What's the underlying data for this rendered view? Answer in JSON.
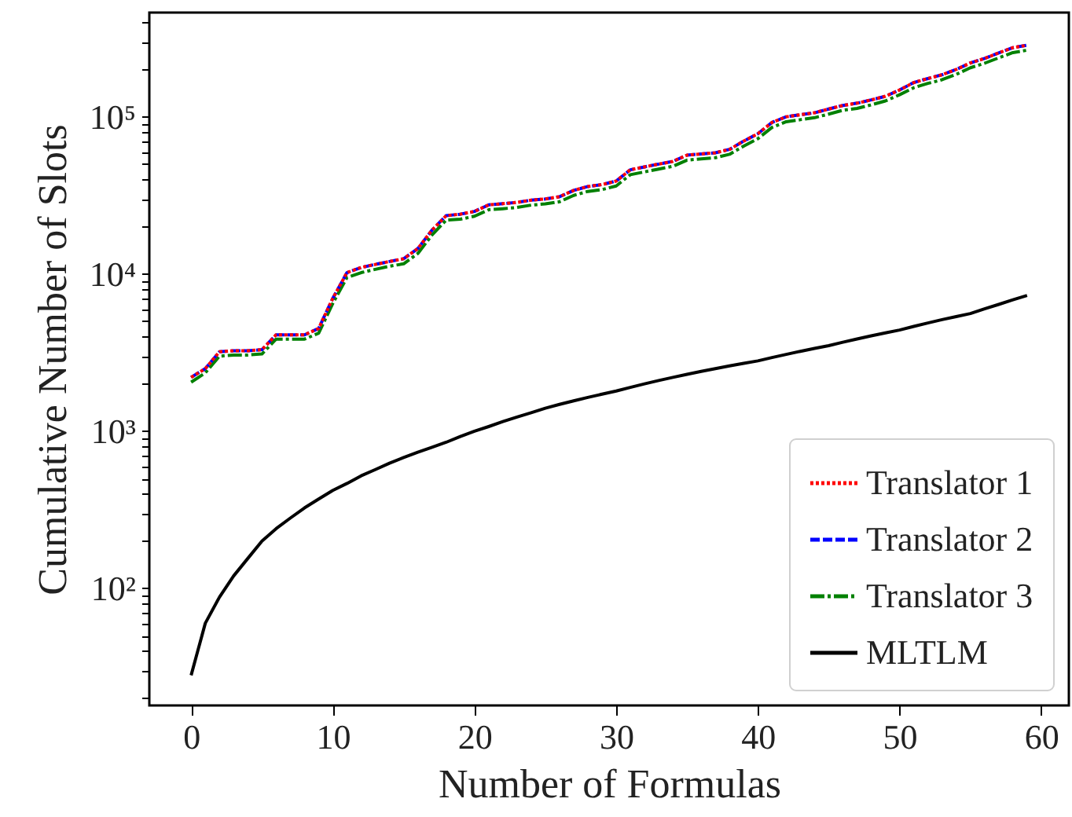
{
  "chart_data": {
    "type": "line",
    "xlabel": "Number of Formulas",
    "ylabel": "Cumulative Number of Slots",
    "log": "y",
    "grid": false,
    "legend": "bottom right",
    "x": [
      0,
      1,
      2,
      3,
      4,
      5,
      6,
      7,
      8,
      9,
      10,
      11,
      12,
      13,
      14,
      15,
      16,
      17,
      18,
      19,
      20,
      21,
      22,
      23,
      24,
      25,
      26,
      27,
      28,
      29,
      30,
      31,
      32,
      33,
      34,
      35,
      36,
      37,
      38,
      39,
      40,
      41,
      42,
      43,
      44,
      45,
      46,
      47,
      48,
      49,
      50,
      51,
      52,
      53,
      54,
      55,
      56,
      57,
      58,
      59
    ],
    "xlim": [
      -2.95,
      61.95
    ],
    "xticks": [
      0,
      10,
      20,
      30,
      40,
      50,
      60
    ],
    "ylim": [
      18,
      460000
    ],
    "yticks": [
      {
        "value": 20,
        "label": null
      },
      {
        "value": 30,
        "label": null
      },
      {
        "value": 40,
        "label": null
      },
      {
        "value": 50,
        "label": null
      },
      {
        "value": 60,
        "label": null
      },
      {
        "value": 70,
        "label": null
      },
      {
        "value": 80,
        "label": null
      },
      {
        "value": 90,
        "label": null
      },
      {
        "value": 100,
        "label": "10²"
      },
      {
        "value": 200,
        "label": null
      },
      {
        "value": 300,
        "label": null
      },
      {
        "value": 400,
        "label": null
      },
      {
        "value": 500,
        "label": null
      },
      {
        "value": 600,
        "label": null
      },
      {
        "value": 700,
        "label": null
      },
      {
        "value": 800,
        "label": null
      },
      {
        "value": 900,
        "label": null
      },
      {
        "value": 1000,
        "label": "10³"
      },
      {
        "value": 2000,
        "label": null
      },
      {
        "value": 3000,
        "label": null
      },
      {
        "value": 4000,
        "label": null
      },
      {
        "value": 5000,
        "label": null
      },
      {
        "value": 6000,
        "label": null
      },
      {
        "value": 7000,
        "label": null
      },
      {
        "value": 8000,
        "label": null
      },
      {
        "value": 9000,
        "label": null
      },
      {
        "value": 10000,
        "label": "10⁴"
      },
      {
        "value": 20000,
        "label": null
      },
      {
        "value": 30000,
        "label": null
      },
      {
        "value": 40000,
        "label": null
      },
      {
        "value": 50000,
        "label": null
      },
      {
        "value": 60000,
        "label": null
      },
      {
        "value": 70000,
        "label": null
      },
      {
        "value": 80000,
        "label": null
      },
      {
        "value": 90000,
        "label": null
      },
      {
        "value": 100000,
        "label": "10⁵"
      },
      {
        "value": 200000,
        "label": null
      },
      {
        "value": 300000,
        "label": null
      },
      {
        "value": 400000,
        "label": null
      }
    ],
    "series": [
      {
        "name": "Translator 1",
        "color": "#ff0000",
        "line_style": "dotted",
        "values": [
          2200,
          2500,
          3200,
          3250,
          3250,
          3300,
          4100,
          4100,
          4100,
          4500,
          7000,
          10200,
          11000,
          11500,
          12000,
          12500,
          14500,
          19000,
          23500,
          24000,
          25000,
          27500,
          28000,
          28500,
          29500,
          30000,
          31000,
          34000,
          36000,
          37000,
          39000,
          46000,
          48000,
          50000,
          52000,
          57000,
          58000,
          59000,
          62000,
          70000,
          78000,
          92000,
          100000,
          103000,
          106000,
          112000,
          118000,
          122000,
          128000,
          135000,
          148000,
          165000,
          175000,
          185000,
          200000,
          220000,
          235000,
          255000,
          275000,
          285000
        ]
      },
      {
        "name": "Translator 2",
        "color": "#0000ff",
        "line_style": "dashed",
        "values": [
          2200,
          2500,
          3200,
          3250,
          3250,
          3300,
          4100,
          4100,
          4100,
          4500,
          7000,
          10200,
          11000,
          11500,
          12000,
          12500,
          14500,
          19000,
          23500,
          24000,
          25000,
          27500,
          28000,
          28500,
          29500,
          30000,
          31000,
          34000,
          36000,
          37000,
          39000,
          46000,
          48000,
          50000,
          52000,
          57000,
          58000,
          59000,
          62000,
          70000,
          78000,
          92000,
          100000,
          103000,
          106000,
          112000,
          118000,
          122000,
          128000,
          135000,
          148000,
          165000,
          175000,
          185000,
          200000,
          220000,
          235000,
          255000,
          275000,
          285000
        ]
      },
      {
        "name": "Translator 3",
        "color": "#008000",
        "line_style": "dashdot",
        "values": [
          2050,
          2350,
          3000,
          3050,
          3050,
          3100,
          3850,
          3850,
          3850,
          4200,
          6500,
          9500,
          10200,
          10700,
          11200,
          11600,
          13500,
          17700,
          22000,
          22300,
          23300,
          25600,
          26000,
          26500,
          27400,
          27900,
          28800,
          31600,
          33500,
          34400,
          36300,
          42800,
          44600,
          46500,
          48400,
          53000,
          54000,
          54900,
          57700,
          65100,
          72500,
          85600,
          93000,
          95800,
          98600,
          104000,
          110000,
          113000,
          119000,
          126000,
          138000,
          153000,
          163000,
          172000,
          186000,
          205000,
          219000,
          237000,
          256000,
          265000
        ]
      },
      {
        "name": "MLTLM",
        "color": "#000000",
        "line_style": "solid",
        "values": [
          28,
          60,
          88,
          120,
          155,
          200,
          240,
          280,
          325,
          370,
          420,
          465,
          520,
          570,
          625,
          680,
          735,
          790,
          850,
          925,
          1000,
          1070,
          1150,
          1230,
          1310,
          1400,
          1480,
          1560,
          1640,
          1720,
          1800,
          1900,
          2000,
          2100,
          2200,
          2300,
          2400,
          2500,
          2600,
          2700,
          2800,
          2940,
          3080,
          3220,
          3360,
          3500,
          3680,
          3860,
          4040,
          4220,
          4400,
          4640,
          4880,
          5120,
          5360,
          5600,
          6000,
          6400,
          6850,
          7300
        ]
      }
    ]
  }
}
